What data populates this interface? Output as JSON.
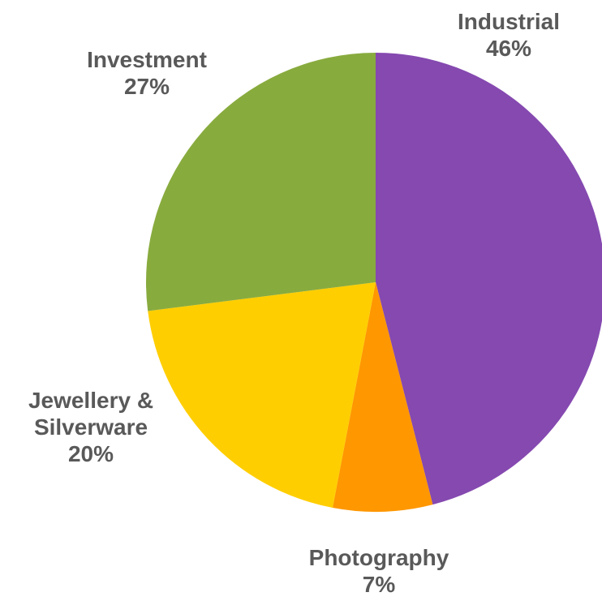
{
  "chart_data": {
    "type": "pie",
    "title": "",
    "start": "top",
    "direction": "clockwise",
    "slices": [
      {
        "name": "Industrial",
        "label_lines": [
          "Industrial",
          "46%"
        ],
        "value": 46,
        "color": "#8549B0"
      },
      {
        "name": "Photography",
        "label_lines": [
          "Photography",
          "7%"
        ],
        "value": 7,
        "color": "#FF9700"
      },
      {
        "name": "Jewellery & Silverware",
        "label_lines": [
          "Jewellery &",
          "Silverware",
          "20%"
        ],
        "value": 20,
        "color": "#FFCE00"
      },
      {
        "name": "Investment",
        "label_lines": [
          "Investment",
          "27%"
        ],
        "value": 27,
        "color": "#88AB3E"
      }
    ]
  }
}
